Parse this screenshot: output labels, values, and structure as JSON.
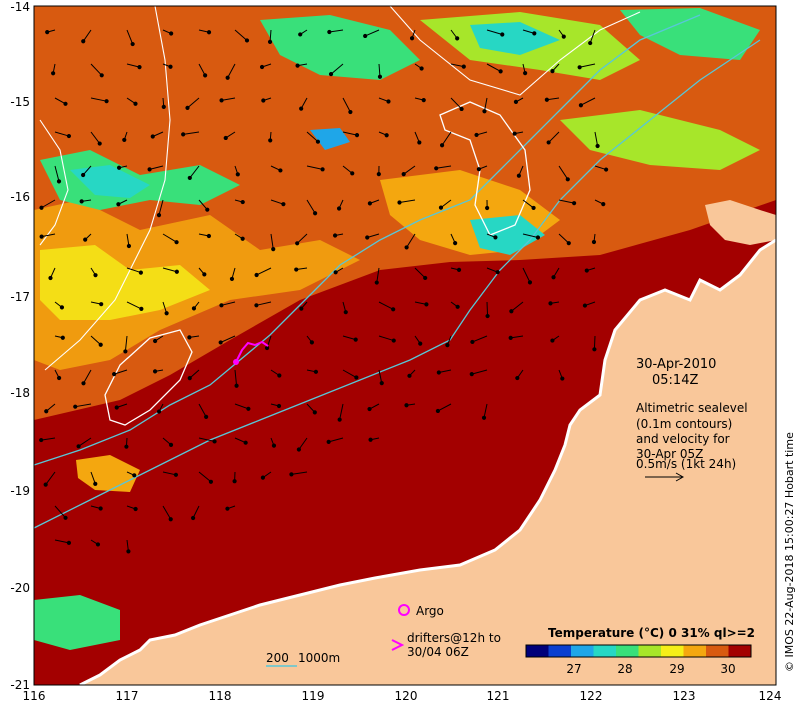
{
  "timestamp": {
    "date": "30-Apr-2010",
    "time": "05:14Z"
  },
  "altimetry_note": [
    "Altimetric sealevel",
    "(0.1m contours)",
    "and velocity for",
    "30-Apr 05Z",
    "0.5m/s (1kt 24h)"
  ],
  "colorbar": {
    "title": "Temperature (°C) 0 31% ql>=2",
    "ticks": [
      "27",
      "28",
      "29",
      "30"
    ],
    "colors": [
      "#00007a",
      "#0a3fd0",
      "#1fa6e8",
      "#27d7c4",
      "#39e07a",
      "#a7e62a",
      "#f5ef18",
      "#f4a70f",
      "#d85a10",
      "#a30000"
    ]
  },
  "legend": {
    "argo": "Argo",
    "drifters": [
      "drifters@12h to",
      "30/04 06Z"
    ],
    "bathy": [
      "200",
      "1000m"
    ]
  },
  "credit": "© IMOS 22-Aug-2018 15:00:27 Hobart time",
  "axes": {
    "x_ticks": [
      "116",
      "117",
      "118",
      "119",
      "120",
      "121",
      "122",
      "123",
      "124"
    ],
    "y_ticks": [
      "-14",
      "-15",
      "-16",
      "-17",
      "-18",
      "-19",
      "-20",
      "-21"
    ]
  },
  "colors": {
    "land": "#f9c79a",
    "hot_sst": "#a30000",
    "contour": "#ffffff",
    "drifter": "#ff00ff",
    "isobath": "#58c7d8"
  }
}
